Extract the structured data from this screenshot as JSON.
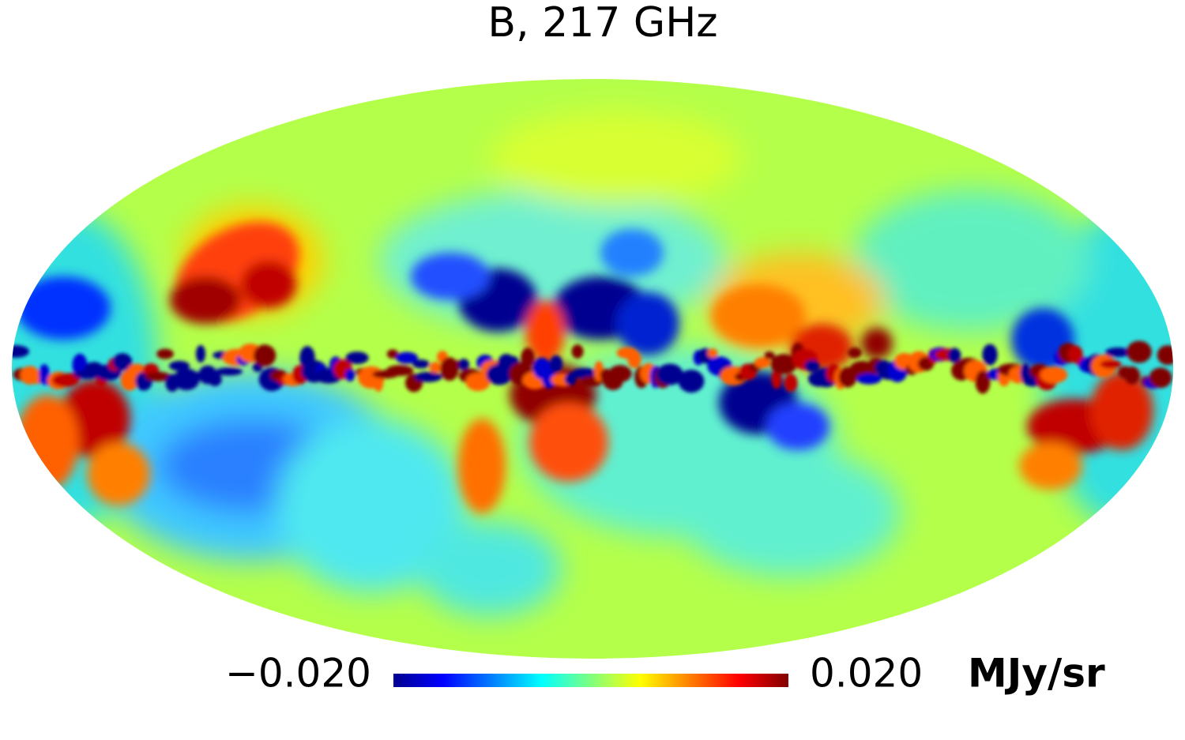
{
  "map": {
    "title": "B, 217 GHz",
    "colorbar": {
      "min": {
        "value": -0.02,
        "label": "−0.020"
      },
      "max": {
        "value": 0.02,
        "label": "0.020"
      },
      "unit": "MJy/sr"
    }
  }
}
